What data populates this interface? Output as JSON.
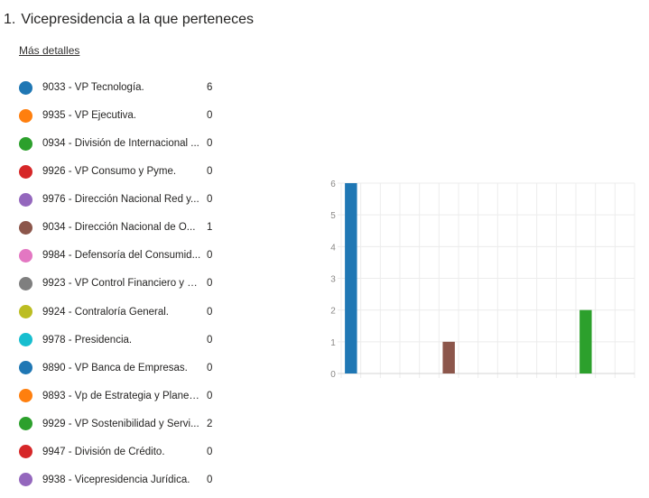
{
  "question": {
    "number": "1.",
    "title": "Vicepresidencia a la que perteneces"
  },
  "more_details": "Más detalles",
  "chart_data": {
    "type": "bar",
    "categories": [
      "9033 - VP Tecnología.",
      "9935 - VP Ejecutiva.",
      "0934 - División de Internacional ...",
      "9926 - VP Consumo y Pyme.",
      "9976 - Dirección Nacional Red y...",
      "9034 - Dirección Nacional de O...",
      "9984 - Defensoría del Consumid...",
      "9923 - VP Control Financiero y R...",
      "9924 - Contraloría General.",
      "9978 - Presidencia.",
      "9890 - VP Banca de Empresas.",
      "9893 - Vp de Estrategia y Planea...",
      "9929 - VP Sostenibilidad y Servi...",
      "9947 - División de Crédito.",
      "9938 - Vicepresidencia Jurídica."
    ],
    "values": [
      6,
      0,
      0,
      0,
      0,
      1,
      0,
      0,
      0,
      0,
      0,
      0,
      2,
      0,
      0
    ],
    "colors": [
      "#1f77b4",
      "#ff7f0e",
      "#2ca02c",
      "#d62728",
      "#9467bd",
      "#8c564b",
      "#e377c2",
      "#7f7f7f",
      "#bcbd22",
      "#17becf",
      "#1f77b4",
      "#ff7f0e",
      "#2ca02c",
      "#d62728",
      "#9467bd"
    ],
    "ylim": [
      0,
      6
    ],
    "yticks": [
      0,
      1,
      2,
      3,
      4,
      5,
      6
    ],
    "grid": true,
    "legend": "left"
  }
}
